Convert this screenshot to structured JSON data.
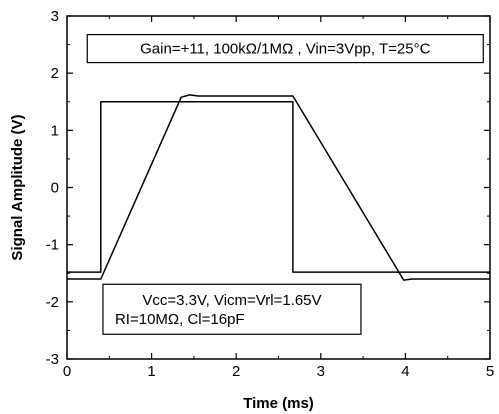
{
  "chart_data": {
    "type": "line",
    "xlabel": "Time (ms)",
    "ylabel": "Signal Amplitude (V)",
    "xlim": [
      0,
      5
    ],
    "ylim": [
      -3,
      3
    ],
    "x_ticks": [
      0,
      1,
      2,
      3,
      4,
      5
    ],
    "y_ticks": [
      -3,
      -2,
      -1,
      0,
      1,
      2,
      3
    ],
    "grid": false,
    "annotations": [
      {
        "text": "Gain=+11, 100kΩ/1MΩ , Vin=3Vpp, T=25°C",
        "lines": [
          "Gain=+11, 100kΩ/1MΩ , Vin=3Vpp, T=25°C"
        ],
        "x": 2.58,
        "y": 2.43
      },
      {
        "text": "Vcc=3.3V, Vicm=Vrl=1.65V RI=10MΩ, Cl=16pF",
        "lines": [
          "Vcc=3.3V, Vicm=Vrl=1.65V",
          "RI=10MΩ, Cl=16pF"
        ],
        "x": 1.95,
        "y": -2.13
      }
    ],
    "series": [
      {
        "x": [
          0,
          0.4,
          0.4,
          2.67,
          2.67,
          5
        ],
        "y": [
          -1.48,
          -1.48,
          1.5,
          1.5,
          -1.48,
          -1.48
        ]
      },
      {
        "x": [
          0,
          0.4,
          1.35,
          1.45,
          1.55,
          2.67,
          3.98,
          4.08,
          5
        ],
        "y": [
          -1.6,
          -1.6,
          1.58,
          1.62,
          1.6,
          1.6,
          -1.62,
          -1.6,
          -1.6
        ]
      }
    ]
  }
}
